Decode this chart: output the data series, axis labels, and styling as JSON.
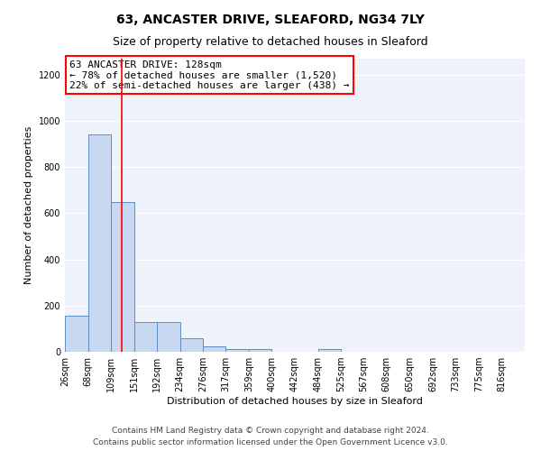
{
  "title_line1": "63, ANCASTER DRIVE, SLEAFORD, NG34 7LY",
  "title_line2": "Size of property relative to detached houses in Sleaford",
  "xlabel": "Distribution of detached houses by size in Sleaford",
  "ylabel": "Number of detached properties",
  "annotation_line1": "63 ANCASTER DRIVE: 128sqm",
  "annotation_line2": "← 78% of detached houses are smaller (1,520)",
  "annotation_line3": "22% of semi-detached houses are larger (438) →",
  "footer_line1": "Contains HM Land Registry data © Crown copyright and database right 2024.",
  "footer_line2": "Contains public sector information licensed under the Open Government Licence v3.0.",
  "bar_color": "#c8d8f0",
  "bar_edge_color": "#5b8ec8",
  "red_line_x": 128,
  "bin_edges": [
    26,
    68,
    109,
    151,
    192,
    234,
    276,
    317,
    359,
    400,
    442,
    484,
    525,
    567,
    608,
    650,
    692,
    733,
    775,
    816,
    858
  ],
  "bar_heights": [
    155,
    940,
    650,
    130,
    130,
    60,
    25,
    12,
    10,
    0,
    0,
    10,
    0,
    0,
    0,
    0,
    0,
    0,
    0,
    0
  ],
  "ylim": [
    0,
    1270
  ],
  "yticks": [
    0,
    200,
    400,
    600,
    800,
    1000,
    1200
  ],
  "bg_color": "#eef2fb",
  "grid_color": "#ffffff",
  "title_fontsize": 10,
  "subtitle_fontsize": 9,
  "axis_label_fontsize": 8,
  "tick_fontsize": 7,
  "annotation_fontsize": 8,
  "footer_fontsize": 6.5
}
